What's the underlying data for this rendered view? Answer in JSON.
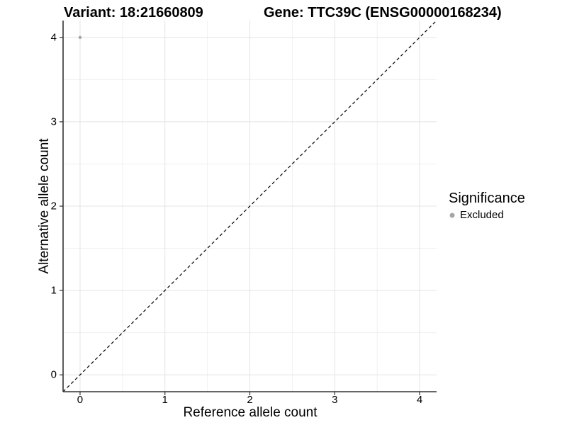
{
  "chart_data": {
    "type": "scatter",
    "titles": {
      "left": "Variant: 18:21660809",
      "right": "Gene: TTC39C (ENSG00000168234)"
    },
    "xlabel": "Reference allele count",
    "ylabel": "Alternative allele count",
    "xlim": [
      -0.2,
      4.2
    ],
    "ylim": [
      -0.2,
      4.2
    ],
    "x_major_ticks": [
      0,
      1,
      2,
      3,
      4
    ],
    "y_major_ticks": [
      0,
      1,
      2,
      3,
      4
    ],
    "x_minor_ticks": [
      0.5,
      1.5,
      2.5,
      3.5
    ],
    "y_minor_ticks": [
      0.5,
      1.5,
      2.5,
      3.5
    ],
    "grid": true,
    "reference_line": {
      "slope": 1,
      "intercept": 0,
      "style": "dashed",
      "color": "#000000"
    },
    "series": [
      {
        "name": "Excluded",
        "color": "#A6A6A6",
        "points": [
          {
            "x": 0,
            "y": 4
          }
        ]
      }
    ],
    "legend": {
      "title": "Significance",
      "position": "right"
    }
  },
  "colors": {
    "background": "#FFFFFF",
    "grid_major": "#E4E4E4",
    "grid_minor": "#F0F0F0",
    "axis_line": "#333333",
    "tick_mark": "#333333",
    "text": "#000000"
  }
}
